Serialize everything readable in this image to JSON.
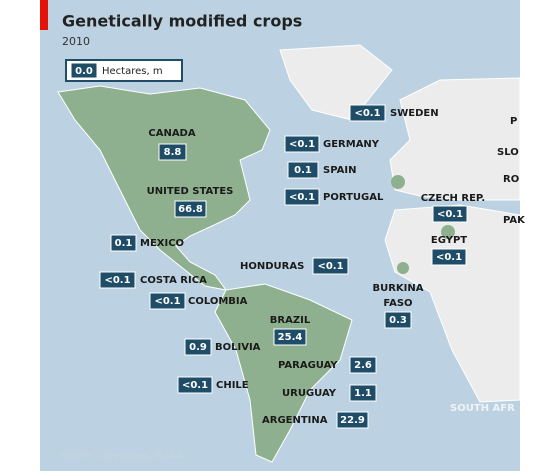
{
  "header": {
    "title": "Genetically modified crops",
    "subtitle": "2010"
  },
  "legend": {
    "value": "0.0",
    "label": "Hectares, m"
  },
  "countries": [
    {
      "name": [
        "SWEDEN"
      ],
      "value": "<0.1"
    },
    {
      "name": [
        "GERMANY"
      ],
      "value": "<0.1"
    },
    {
      "name": [
        "SPAIN"
      ],
      "value": "0.1"
    },
    {
      "name": [
        "PORTUGAL"
      ],
      "value": "<0.1"
    },
    {
      "name": [
        "CANADA"
      ],
      "value": "8.8"
    },
    {
      "name": [
        "UNITED STATES"
      ],
      "value": "66.8"
    },
    {
      "name": [
        "MEXICO"
      ],
      "value": "0.1"
    },
    {
      "name": [
        "HONDURAS"
      ],
      "value": "<0.1"
    },
    {
      "name": [
        "COSTA RICA"
      ],
      "value": "<0.1"
    },
    {
      "name": [
        "COLOMBIA"
      ],
      "value": "<0.1"
    },
    {
      "name": [
        "BRAZIL"
      ],
      "value": "25.4"
    },
    {
      "name": [
        "BOLIVIA"
      ],
      "value": "0.9"
    },
    {
      "name": [
        "PARAGUAY"
      ],
      "value": "2.6"
    },
    {
      "name": [
        "CHILE"
      ],
      "value": "<0.1"
    },
    {
      "name": [
        "URUGUAY"
      ],
      "value": "1.1"
    },
    {
      "name": [
        "ARGENTINA"
      ],
      "value": "22.9"
    },
    {
      "name": [
        "CZECH REP."
      ],
      "value": "<0.1"
    },
    {
      "name": [
        "EGYPT"
      ],
      "value": "<0.1"
    },
    {
      "name": [
        "BURKINA",
        "FASO"
      ],
      "value": "0.3"
    }
  ],
  "cut_labels": [
    "P",
    "SLO",
    "RO",
    "PAK",
    "SOUTH AFR"
  ],
  "source": "Source: Clive James, ISAAA"
}
